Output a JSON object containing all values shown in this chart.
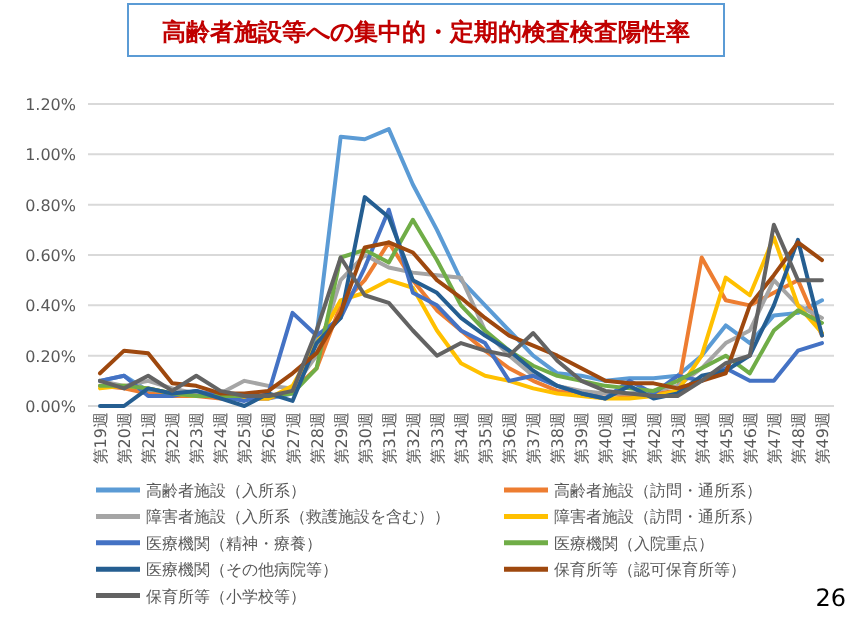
{
  "chart_data": {
    "type": "line",
    "title": "高齢者施設等への集中的・定期的検査検査陽性率",
    "categories": [
      "第19週",
      "第20週",
      "第21週",
      "第22週",
      "第23週",
      "第24週",
      "第25週",
      "第26週",
      "第27週",
      "第28週",
      "第29週",
      "第30週",
      "第31週",
      "第32週",
      "第33週",
      "第34週",
      "第35週",
      "第36週",
      "第37週",
      "第38週",
      "第39週",
      "第40週",
      "第41週",
      "第42週",
      "第43週",
      "第44週",
      "第45週",
      "第46週",
      "第47週",
      "第48週",
      "第49週"
    ],
    "ylim": [
      0,
      1.2
    ],
    "yticks": [
      {
        "value": 0,
        "label": "0.00%"
      },
      {
        "value": 0.2,
        "label": "0.20%"
      },
      {
        "value": 0.4,
        "label": "0.40%"
      },
      {
        "value": 0.6,
        "label": "0.60%"
      },
      {
        "value": 0.8,
        "label": "0.80%"
      },
      {
        "value": 1.0,
        "label": "1.00%"
      },
      {
        "value": 1.2,
        "label": "1.20%"
      }
    ],
    "grid": "y",
    "legend": "bottom",
    "series": [
      {
        "name": "高齢者施設（入所系）",
        "color": "#5b9bd5",
        "values": [
          0.1,
          0.12,
          0.06,
          0.05,
          0.05,
          0.04,
          0.03,
          0.03,
          0.05,
          0.28,
          1.07,
          1.06,
          1.1,
          0.88,
          0.7,
          0.5,
          0.4,
          0.3,
          0.2,
          0.13,
          0.12,
          0.1,
          0.11,
          0.11,
          0.12,
          0.2,
          0.32,
          0.25,
          0.36,
          0.37,
          0.42
        ]
      },
      {
        "name": "高齢者施設（訪問・通所系）",
        "color": "#ed7d31",
        "values": [
          0.08,
          0.07,
          0.05,
          0.04,
          0.04,
          0.03,
          0.03,
          0.03,
          0.06,
          0.15,
          0.4,
          0.5,
          0.65,
          0.5,
          0.38,
          0.3,
          0.22,
          0.15,
          0.1,
          0.06,
          0.05,
          0.05,
          0.04,
          0.05,
          0.06,
          0.59,
          0.42,
          0.4,
          0.45,
          0.5,
          0.28
        ]
      },
      {
        "name": "障害者施設（入所系（救護施設を含む））",
        "color": "#a5a5a5",
        "values": [
          0.1,
          0.08,
          0.1,
          0.07,
          0.05,
          0.05,
          0.1,
          0.08,
          0.07,
          0.2,
          0.5,
          0.6,
          0.55,
          0.53,
          0.52,
          0.51,
          0.3,
          0.2,
          0.12,
          0.08,
          0.06,
          0.05,
          0.05,
          0.06,
          0.08,
          0.15,
          0.25,
          0.3,
          0.5,
          0.4,
          0.35
        ]
      },
      {
        "name": "障害者施設（訪問・通所系）",
        "color": "#ffc000",
        "values": [
          0.07,
          0.08,
          0.07,
          0.05,
          0.04,
          0.04,
          0.03,
          0.03,
          0.08,
          0.25,
          0.42,
          0.45,
          0.5,
          0.47,
          0.3,
          0.17,
          0.12,
          0.1,
          0.07,
          0.05,
          0.04,
          0.03,
          0.03,
          0.04,
          0.06,
          0.2,
          0.51,
          0.44,
          0.67,
          0.4,
          0.29
        ]
      },
      {
        "name": "医療機関（精神・療養）",
        "color": "#4472c4",
        "values": [
          0.1,
          0.12,
          0.04,
          0.04,
          0.06,
          0.04,
          0.02,
          0.05,
          0.37,
          0.28,
          0.35,
          0.55,
          0.78,
          0.45,
          0.4,
          0.3,
          0.25,
          0.1,
          0.12,
          0.08,
          0.05,
          0.03,
          0.1,
          0.05,
          0.12,
          0.1,
          0.15,
          0.1,
          0.1,
          0.22,
          0.25
        ]
      },
      {
        "name": "医療機関（入院重点）",
        "color": "#70ad47",
        "values": [
          0.08,
          0.08,
          0.07,
          0.05,
          0.04,
          0.04,
          0.04,
          0.04,
          0.05,
          0.15,
          0.59,
          0.62,
          0.57,
          0.74,
          0.58,
          0.4,
          0.3,
          0.22,
          0.16,
          0.12,
          0.1,
          0.08,
          0.07,
          0.06,
          0.1,
          0.15,
          0.2,
          0.13,
          0.3,
          0.38,
          0.33
        ]
      },
      {
        "name": "医療機関（その他病院等）",
        "color": "#255e91",
        "values": [
          0.0,
          0.0,
          0.07,
          0.05,
          0.06,
          0.03,
          0.0,
          0.05,
          0.02,
          0.25,
          0.35,
          0.83,
          0.75,
          0.5,
          0.45,
          0.35,
          0.28,
          0.22,
          0.14,
          0.08,
          0.05,
          0.03,
          0.08,
          0.03,
          0.05,
          0.12,
          0.14,
          0.2,
          0.4,
          0.66,
          0.28
        ]
      },
      {
        "name": "保育所等（認可保育所等）",
        "color": "#9e480e",
        "values": [
          0.13,
          0.22,
          0.21,
          0.09,
          0.08,
          0.05,
          0.05,
          0.06,
          0.13,
          0.21,
          0.37,
          0.63,
          0.65,
          0.61,
          0.5,
          0.43,
          0.35,
          0.28,
          0.24,
          0.2,
          0.15,
          0.1,
          0.09,
          0.09,
          0.07,
          0.1,
          0.13,
          0.4,
          0.52,
          0.65,
          0.58
        ]
      },
      {
        "name": "保育所等（小学校等）",
        "color": "#636363",
        "values": [
          0.1,
          0.07,
          0.12,
          0.06,
          0.12,
          0.06,
          0.04,
          0.04,
          0.06,
          0.3,
          0.59,
          0.44,
          0.41,
          0.3,
          0.2,
          0.25,
          0.22,
          0.2,
          0.29,
          0.18,
          0.1,
          0.06,
          0.05,
          0.04,
          0.04,
          0.1,
          0.17,
          0.2,
          0.72,
          0.5,
          0.5
        ]
      }
    ],
    "annotations": [
      "26"
    ]
  }
}
